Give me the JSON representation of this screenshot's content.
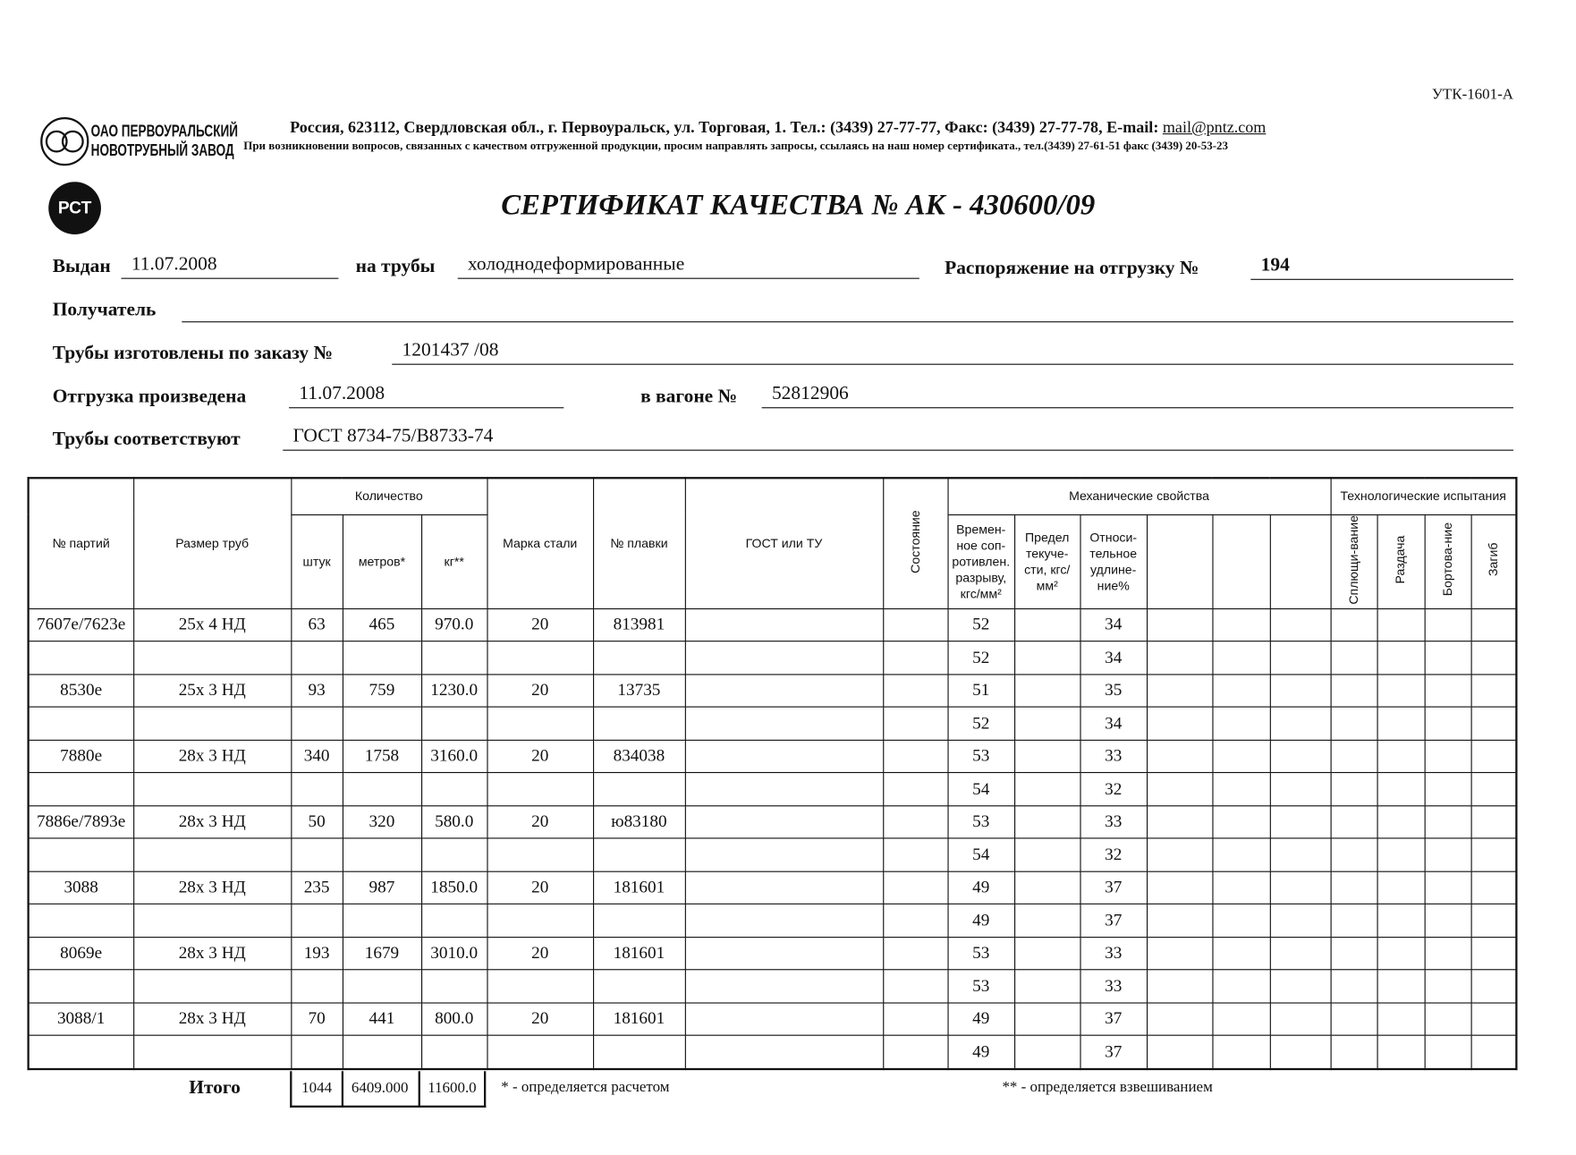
{
  "header": {
    "form_code": "УТК-1601-А",
    "company_line1": "ОАО ПЕРВОУРАЛЬСКИЙ",
    "company_line2": "НОВОТРУБНЫЙ ЗАВОД",
    "address": "Россия, 623112, Свердловская обл., г. Первоуральск, ул. Торговая, 1. Тел.: (3439) 27-77-77, Факс: (3439) 27-77-78,  E-mail: ",
    "email": "mail@pntz.com",
    "note": "При возникновении вопросов, связанных с качеством отгруженной продукции, просим направлять запросы, ссылаясь на наш номер сертификата., тел.(3439) 27-61-51 факс (3439) 20-53-23",
    "cert_mark": "РСТ"
  },
  "title": "СЕРТИФИКАТ КАЧЕСТВА   №  АК -  430600/09",
  "fields": {
    "issued_label": "Выдан",
    "issued": "11.07.2008",
    "pipes_label": "на трубы",
    "pipes": "холоднодеформированные",
    "order_label": "Распоряжение на отгрузку №",
    "order": "194",
    "recipient_label": "Получатель",
    "recipient": "",
    "made_label": "Трубы изготовлены по заказу №",
    "made": "1201437   /08",
    "shipped_label": "Отгрузка произведена",
    "shipped": "11.07.2008",
    "wagon_label": "в вагоне №",
    "wagon": "52812906",
    "conform_label": "Трубы соответствуют",
    "conform": "ГОСТ 8734-75/В8733-74"
  },
  "table": {
    "h_batch": "№ партий",
    "h_size": "Размер труб",
    "h_qty": "Количество",
    "h_pcs": "штук",
    "h_m": "метров*",
    "h_kg": "кг**",
    "h_steel": "Марка стали",
    "h_heat": "№ плавки",
    "h_gost": "ГОСТ или ТУ",
    "h_state": "Состояние",
    "h_mech": "Механические свойства",
    "h_tensile": "Времен-ное соп-ротивлен. разрыву, кгс/мм²",
    "h_yield": "Предел текуче-сти, кгс/мм²",
    "h_elong": "Относи-тельное удлине-ние%",
    "h_tech": "Технологические испытания",
    "h_flat": "Сплющи-вание",
    "h_expand": "Раздача",
    "h_flange": "Бортова-ние",
    "h_bend": "Загиб",
    "rows": [
      [
        "7607е/7623е",
        "25х 4 НД",
        "63",
        "465",
        "970.0",
        "20",
        "813981",
        "52",
        "34"
      ],
      [
        "",
        "",
        "",
        "",
        "",
        "",
        "",
        "52",
        "34"
      ],
      [
        "8530е",
        "25х 3 НД",
        "93",
        "759",
        "1230.0",
        "20",
        "13735",
        "51",
        "35"
      ],
      [
        "",
        "",
        "",
        "",
        "",
        "",
        "",
        "52",
        "34"
      ],
      [
        "7880е",
        "28х 3 НД",
        "340",
        "1758",
        "3160.0",
        "20",
        "834038",
        "53",
        "33"
      ],
      [
        "",
        "",
        "",
        "",
        "",
        "",
        "",
        "54",
        "32"
      ],
      [
        "7886е/7893е",
        "28х 3 НД",
        "50",
        "320",
        "580.0",
        "20",
        "ю83180",
        "53",
        "33"
      ],
      [
        "",
        "",
        "",
        "",
        "",
        "",
        "",
        "54",
        "32"
      ],
      [
        "3088",
        "28х 3 НД",
        "235",
        "987",
        "1850.0",
        "20",
        "181601",
        "49",
        "37"
      ],
      [
        "",
        "",
        "",
        "",
        "",
        "",
        "",
        "49",
        "37"
      ],
      [
        "8069е",
        "28х 3 НД",
        "193",
        "1679",
        "3010.0",
        "20",
        "181601",
        "53",
        "33"
      ],
      [
        "",
        "",
        "",
        "",
        "",
        "",
        "",
        "53",
        "33"
      ],
      [
        "3088/1",
        "28х 3 НД",
        "70",
        "441",
        "800.0",
        "20",
        "181601",
        "49",
        "37"
      ],
      [
        "",
        "",
        "",
        "",
        "",
        "",
        "",
        "49",
        "37"
      ]
    ],
    "total_label": "Итого",
    "total_pcs": "1044",
    "total_m": "6409.000",
    "total_kg": "11600.0",
    "calc_note": "* - определяется расчетом",
    "weigh_note": "** - определяется взвешиванием"
  }
}
